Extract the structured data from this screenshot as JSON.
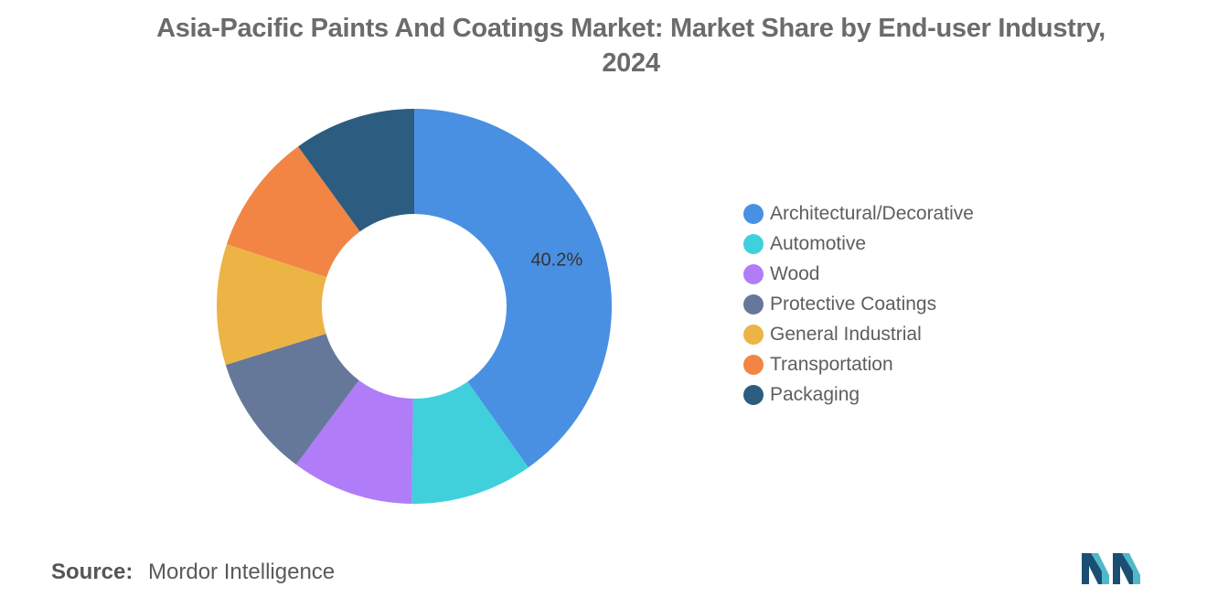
{
  "title": {
    "line1": "Asia-Pacific Paints And Coatings Market: Market Share by End-user Industry,",
    "line2": "2024"
  },
  "chart_data": {
    "type": "pie",
    "style": "donut",
    "title": "Asia-Pacific Paints And Coatings Market: Market Share by End-user Industry, 2024",
    "legend_position": "right",
    "categories": [
      "Architectural/Decorative",
      "Automotive",
      "Wood",
      "Protective Coatings",
      "General Industrial",
      "Transportation",
      "Packaging"
    ],
    "values": [
      40.2,
      10.0,
      10.0,
      10.0,
      9.9,
      9.9,
      10.0
    ],
    "colors": [
      "#4a90e2",
      "#40d0db",
      "#b07cf7",
      "#667899",
      "#ebb444",
      "#f28544",
      "#2c5c80"
    ],
    "data_labels": [
      "40.2%",
      "",
      "",
      "",
      "",
      "",
      ""
    ]
  },
  "footer": {
    "source_label": "Source:",
    "source_value": "Mordor Intelligence"
  },
  "logo": {
    "icon": "mordor-intelligence-logo-icon",
    "colors": [
      "#1b4f72",
      "#4fb8c9"
    ]
  }
}
